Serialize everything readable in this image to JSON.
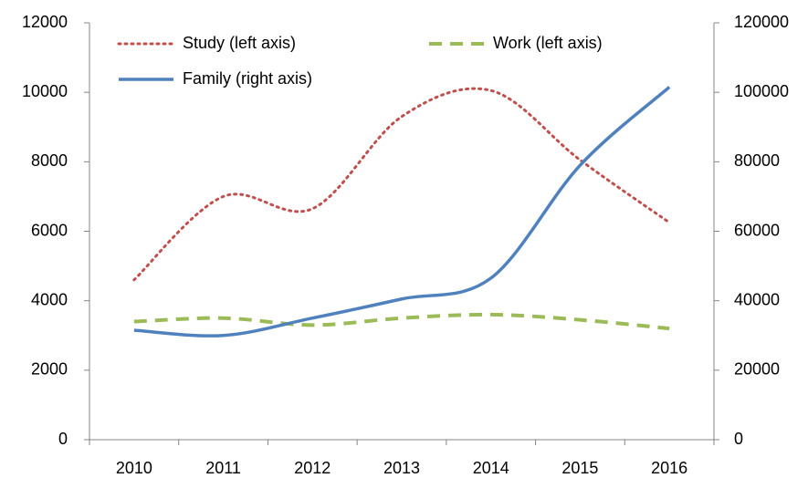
{
  "chart_data": {
    "type": "line",
    "categories": [
      "2010",
      "2011",
      "2012",
      "2013",
      "2014",
      "2015",
      "2016"
    ],
    "series": [
      {
        "name": "Study (left axis)",
        "color": "#c0504d",
        "style": "dotted",
        "values": [
          4600,
          7000,
          6650,
          9300,
          10050,
          8050,
          6250
        ]
      },
      {
        "name": "Work (left axis)",
        "color": "#9bbb59",
        "style": "dashed",
        "values": [
          3400,
          3500,
          3300,
          3500,
          3600,
          3450,
          3200
        ]
      },
      {
        "name": "Family (right axis)",
        "color": "#4f81bd",
        "style": "solid",
        "axis": "y2",
        "values": [
          31500,
          30000,
          35000,
          40500,
          46500,
          79000,
          101500
        ]
      }
    ],
    "ylim": [
      0,
      12000
    ],
    "yticks": [
      0,
      2000,
      4000,
      6000,
      8000,
      10000,
      12000
    ],
    "y2lim": [
      0,
      120000
    ],
    "y2ticks": [
      0,
      20000,
      40000,
      60000,
      80000,
      100000,
      120000
    ],
    "smooth": true,
    "legend": "top"
  }
}
